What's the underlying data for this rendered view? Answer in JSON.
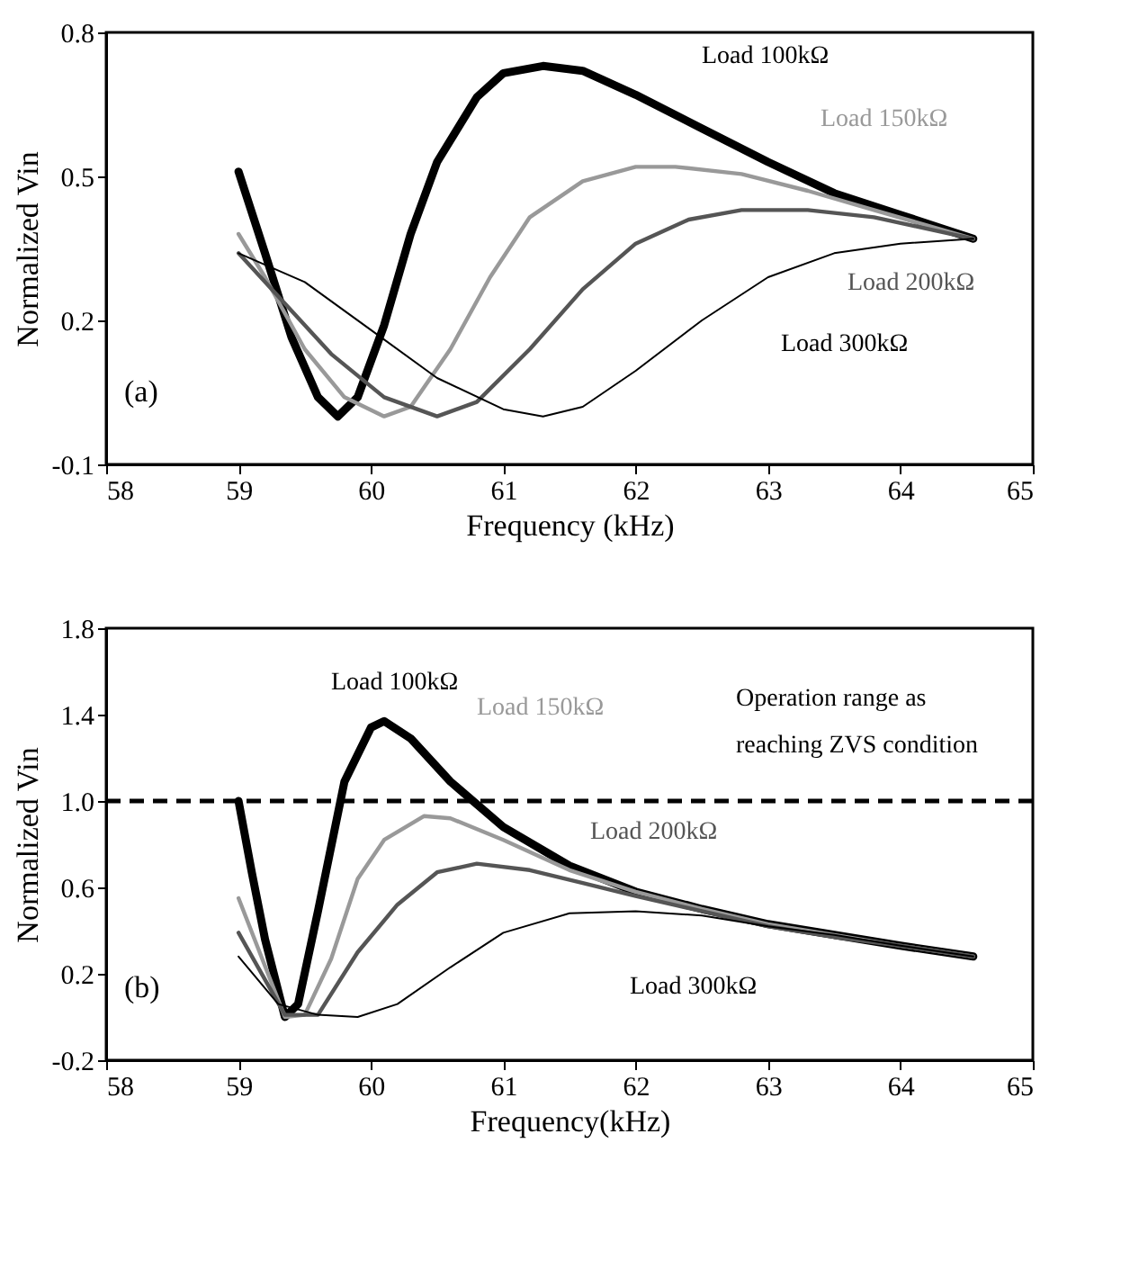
{
  "chart_data": [
    {
      "type": "line",
      "xlabel": "Frequency (kHz)",
      "ylabel": "Normalized Vin",
      "xlim": [
        58,
        65
      ],
      "xticks": [
        58,
        59,
        60,
        61,
        62,
        63,
        64,
        65
      ],
      "ylim": [
        -0.1,
        0.8
      ],
      "yticks": [
        -0.1,
        0.2,
        0.5,
        0.8
      ],
      "grid": false,
      "legend": false,
      "marker": "none",
      "line_style": "solid",
      "annotations": [
        "(a)"
      ],
      "series": [
        {
          "name": "Load 100kΩ",
          "color": "#000000",
          "x": [
            59,
            59.2,
            59.4,
            59.6,
            59.75,
            59.9,
            60.1,
            60.3,
            60.5,
            60.8,
            61.0,
            61.3,
            61.6,
            62.0,
            62.5,
            63.0,
            63.5,
            64.0,
            64.55
          ],
          "values": [
            0.51,
            0.34,
            0.165,
            0.04,
            0.0,
            0.04,
            0.19,
            0.38,
            0.53,
            0.665,
            0.715,
            0.73,
            0.72,
            0.67,
            0.6,
            0.53,
            0.465,
            0.42,
            0.37
          ]
        },
        {
          "name": "Load 150kΩ",
          "color": "#999999",
          "x": [
            59,
            59.2,
            59.5,
            59.8,
            60.1,
            60.3,
            60.6,
            60.9,
            61.2,
            61.6,
            62.0,
            62.3,
            62.8,
            63.3,
            63.8,
            64.55
          ],
          "values": [
            0.38,
            0.29,
            0.14,
            0.04,
            0.0,
            0.02,
            0.14,
            0.29,
            0.415,
            0.49,
            0.52,
            0.52,
            0.505,
            0.47,
            0.43,
            0.37
          ]
        },
        {
          "name": "Load 200kΩ",
          "color": "#555555",
          "x": [
            59,
            59.3,
            59.7,
            60.1,
            60.5,
            60.8,
            61.2,
            61.6,
            62.0,
            62.4,
            62.8,
            63.3,
            63.8,
            64.55
          ],
          "values": [
            0.34,
            0.25,
            0.13,
            0.04,
            0.0,
            0.03,
            0.14,
            0.265,
            0.36,
            0.41,
            0.43,
            0.43,
            0.415,
            0.37
          ]
        },
        {
          "name": "Load 300kΩ",
          "color": "#000000",
          "x": [
            59,
            59.5,
            60.0,
            60.5,
            61.0,
            61.3,
            61.6,
            62.0,
            62.5,
            63.0,
            63.5,
            64.0,
            64.55
          ],
          "values": [
            0.34,
            0.28,
            0.18,
            0.08,
            0.015,
            0.0,
            0.02,
            0.095,
            0.2,
            0.29,
            0.34,
            0.36,
            0.37
          ]
        }
      ]
    },
    {
      "type": "line",
      "xlabel": "Frequency(kHz)",
      "ylabel": "Normalized Vin",
      "xlim": [
        58,
        65
      ],
      "xticks": [
        58,
        59,
        60,
        61,
        62,
        63,
        64,
        65
      ],
      "ylim": [
        -0.2,
        1.8
      ],
      "yticks": [
        -0.2,
        0.2,
        0.6,
        {
          "value": 1.0,
          "label": "1.0"
        },
        1.4,
        1.8
      ],
      "grid": false,
      "legend": false,
      "marker": "none",
      "line_style": "solid",
      "annotations": [
        "(b)"
      ],
      "ref_lines": [
        {
          "axis": "y",
          "value": 1.0,
          "label": "Operation range as\nreaching ZVS condition",
          "color": "#000000",
          "line_style": "dashed"
        }
      ],
      "series": [
        {
          "name": "Load 100kΩ",
          "color": "#000000",
          "x": [
            59,
            59.1,
            59.2,
            59.35,
            59.45,
            59.6,
            59.8,
            60.0,
            60.1,
            60.3,
            60.6,
            61.0,
            61.5,
            62.0,
            62.5,
            63.0,
            63.5,
            64.0,
            64.55
          ],
          "values": [
            1.0,
            0.67,
            0.36,
            0.0,
            0.06,
            0.49,
            1.09,
            1.34,
            1.37,
            1.29,
            1.09,
            0.88,
            0.7,
            0.58,
            0.5,
            0.43,
            0.38,
            0.33,
            0.28
          ]
        },
        {
          "name": "Load 150kΩ",
          "color": "#999999",
          "x": [
            59,
            59.35,
            59.5,
            59.7,
            59.9,
            60.1,
            60.4,
            60.6,
            61.0,
            61.5,
            62.0,
            62.5,
            63.0,
            63.5,
            64.0,
            64.55
          ],
          "values": [
            0.55,
            0.0,
            0.01,
            0.27,
            0.64,
            0.82,
            0.93,
            0.92,
            0.82,
            0.68,
            0.58,
            0.5,
            0.43,
            0.38,
            0.33,
            0.28
          ]
        },
        {
          "name": "Load 200kΩ",
          "color": "#555555",
          "x": [
            59,
            59.35,
            59.6,
            59.9,
            60.2,
            60.5,
            60.8,
            61.2,
            61.6,
            62.0,
            62.5,
            63.0,
            63.5,
            64.0,
            64.55
          ],
          "values": [
            0.39,
            0.01,
            0.01,
            0.3,
            0.52,
            0.67,
            0.71,
            0.68,
            0.62,
            0.56,
            0.49,
            0.42,
            0.37,
            0.33,
            0.28
          ]
        },
        {
          "name": "Load 300kΩ",
          "color": "#000000",
          "x": [
            59,
            59.3,
            59.6,
            59.9,
            60.2,
            60.6,
            61.0,
            61.5,
            62.0,
            62.5,
            63.0,
            63.5,
            64.0,
            64.55
          ],
          "values": [
            0.28,
            0.06,
            0.01,
            0.0,
            0.06,
            0.23,
            0.39,
            0.48,
            0.49,
            0.47,
            0.42,
            0.38,
            0.33,
            0.28
          ]
        }
      ]
    }
  ]
}
